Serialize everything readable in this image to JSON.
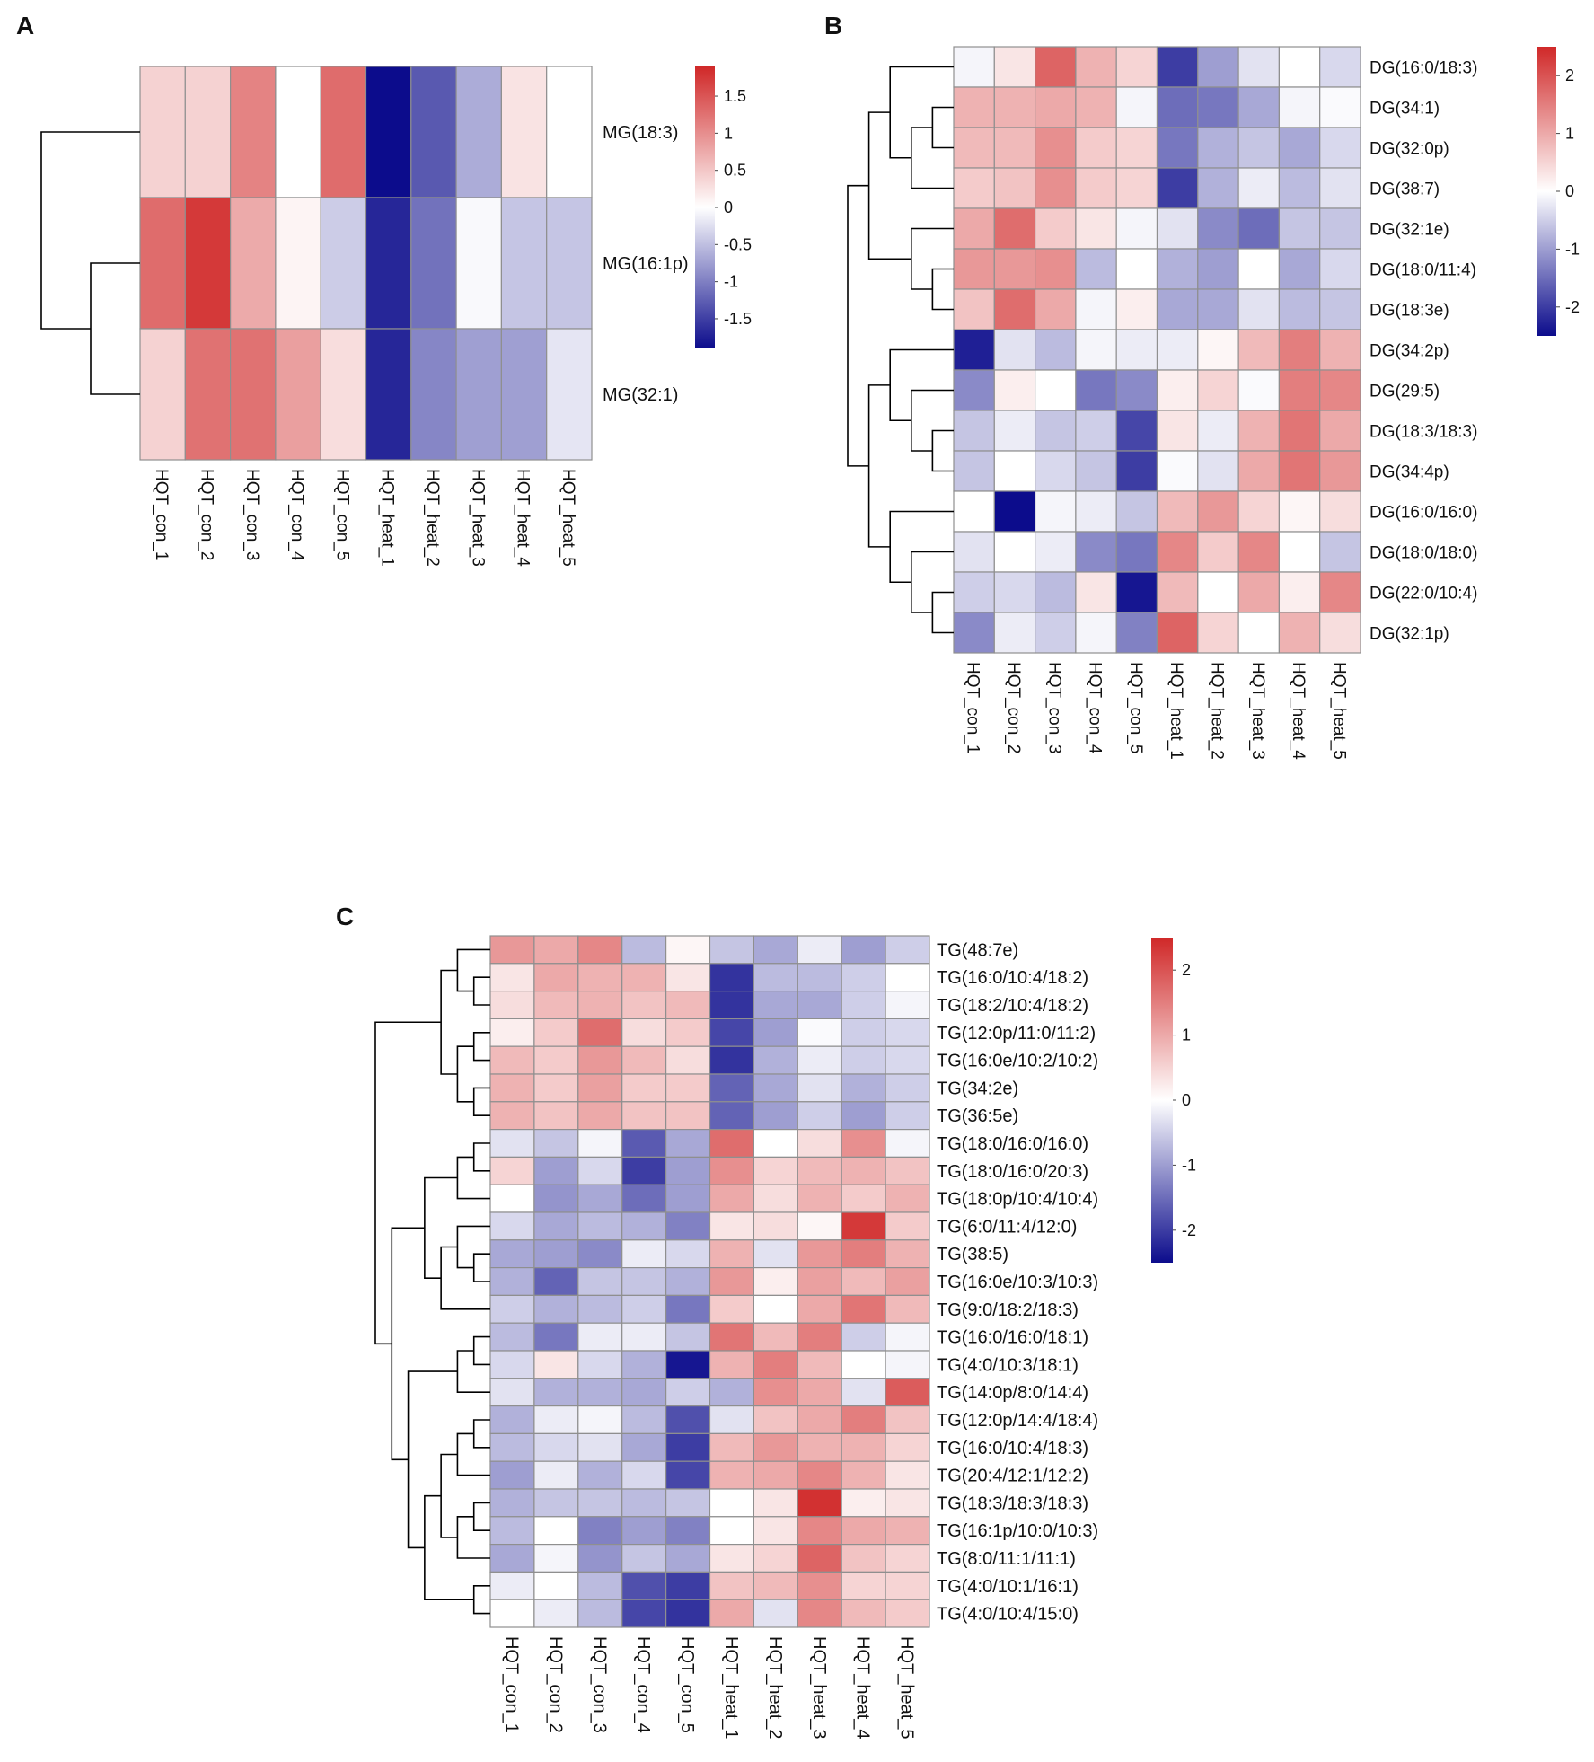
{
  "figure": {
    "panel_letters": [
      "A",
      "B",
      "C"
    ]
  },
  "colors": {
    "low": "#0c0c8c",
    "mid": "#ffffff",
    "high": "#d02828",
    "cell_border": "#8f8f8f",
    "tree": "#000000"
  },
  "chart_data": [
    {
      "type": "heatmap",
      "panel": "A",
      "title": "",
      "columns": [
        "HQT_con_1",
        "HQT_con_2",
        "HQT_con_3",
        "HQT_con_4",
        "HQT_con_5",
        "HQT_heat_1",
        "HQT_heat_2",
        "HQT_heat_3",
        "HQT_heat_4",
        "HQT_heat_5"
      ],
      "rows": [
        "MG(18:3)",
        "MG(16:1p)",
        "MG(32:1)"
      ],
      "values": [
        [
          0.4,
          0.4,
          1.1,
          0.0,
          1.3,
          -1.9,
          -1.3,
          -0.65,
          0.25,
          0.0
        ],
        [
          1.3,
          1.75,
          0.75,
          0.1,
          -0.4,
          -1.7,
          -1.1,
          -0.05,
          -0.45,
          -0.45
        ],
        [
          0.4,
          1.25,
          1.25,
          0.85,
          0.3,
          -1.7,
          -0.95,
          -0.75,
          -0.75,
          -0.2
        ]
      ],
      "legend": {
        "ticks": [
          1.5,
          1,
          0.5,
          0,
          -0.5,
          -1,
          -1.5
        ],
        "range": [
          -1.9,
          1.9
        ]
      },
      "row_dendrogram": {
        "merges": [
          [
            1,
            2
          ],
          [
            0,
            "1+2"
          ]
        ]
      }
    },
    {
      "type": "heatmap",
      "panel": "B",
      "title": "",
      "columns": [
        "HQT_con_1",
        "HQT_con_2",
        "HQT_con_3",
        "HQT_con_4",
        "HQT_con_5",
        "HQT_heat_1",
        "HQT_heat_2",
        "HQT_heat_3",
        "HQT_heat_4",
        "HQT_heat_5"
      ],
      "rows": [
        "DG(16:0/18:3)",
        "DG(34:1)",
        "DG(32:0p)",
        "DG(38:7)",
        "DG(32:1e)",
        "DG(18:0/11:4)",
        "DG(18:3e)",
        "DG(34:2p)",
        "DG(29:5)",
        "DG(18:3/18:3)",
        "DG(34:4p)",
        "DG(16:0/16:0)",
        "DG(18:0/18:0)",
        "DG(22:0/10:4)",
        "DG(32:1p)"
      ],
      "values": [
        [
          -0.1,
          0.3,
          1.8,
          0.9,
          0.5,
          -2.0,
          -1.0,
          -0.3,
          0.0,
          -0.4
        ],
        [
          0.9,
          0.9,
          1.0,
          0.9,
          -0.1,
          -1.5,
          -1.4,
          -0.9,
          -0.1,
          -0.05
        ],
        [
          0.8,
          0.8,
          1.3,
          0.6,
          0.5,
          -1.4,
          -0.8,
          -0.6,
          -0.9,
          -0.4
        ],
        [
          0.6,
          0.7,
          1.3,
          0.6,
          0.5,
          -2.0,
          -0.8,
          -0.2,
          -0.7,
          -0.3
        ],
        [
          1.0,
          1.7,
          0.6,
          0.3,
          -0.1,
          -0.3,
          -1.2,
          -1.5,
          -0.6,
          -0.6
        ],
        [
          1.2,
          1.2,
          1.3,
          -0.7,
          0.0,
          -0.8,
          -1.0,
          0.0,
          -0.9,
          -0.4
        ],
        [
          0.7,
          1.7,
          1.0,
          -0.1,
          0.2,
          -0.9,
          -0.9,
          -0.3,
          -0.7,
          -0.6
        ],
        [
          -2.3,
          -0.3,
          -0.7,
          -0.1,
          -0.2,
          -0.2,
          0.1,
          0.8,
          1.5,
          0.9
        ],
        [
          -1.2,
          0.2,
          0.0,
          -1.4,
          -1.2,
          0.2,
          0.5,
          -0.05,
          1.5,
          1.4
        ],
        [
          -0.6,
          -0.2,
          -0.6,
          -0.5,
          -1.9,
          0.3,
          -0.2,
          0.9,
          1.6,
          1.0
        ],
        [
          -0.6,
          0.0,
          -0.4,
          -0.6,
          -2.0,
          -0.05,
          -0.3,
          1.0,
          1.6,
          1.2
        ],
        [
          0.0,
          -2.5,
          -0.1,
          -0.2,
          -0.6,
          0.8,
          1.2,
          0.5,
          0.1,
          0.4
        ],
        [
          -0.3,
          0.0,
          -0.2,
          -1.2,
          -1.4,
          1.4,
          0.6,
          1.4,
          0.0,
          -0.6
        ],
        [
          -0.5,
          -0.4,
          -0.7,
          0.3,
          -2.4,
          0.8,
          0.0,
          1.0,
          0.2,
          1.4
        ],
        [
          -1.2,
          -0.2,
          -0.5,
          -0.1,
          -1.3,
          1.8,
          0.5,
          0.0,
          0.9,
          0.4
        ]
      ],
      "legend": {
        "ticks": [
          2,
          1,
          0,
          -1,
          -2
        ],
        "range": [
          -2.5,
          2.5
        ]
      },
      "row_dendrogram": {
        "merges": [
          [
            1,
            2
          ],
          [
            3,
            "1+2"
          ],
          [
            0,
            "1+2+3"
          ],
          [
            5,
            6
          ],
          [
            4,
            "5+6"
          ],
          [
            "0-3",
            "4-6"
          ],
          [
            9,
            10
          ],
          [
            8,
            "9+10"
          ],
          [
            7,
            "8-10"
          ],
          [
            13,
            14
          ],
          [
            12,
            "13+14"
          ],
          [
            11,
            "12-14"
          ],
          [
            "7-10",
            "11-14"
          ],
          [
            "0-6",
            "7-14"
          ]
        ]
      }
    },
    {
      "type": "heatmap",
      "panel": "C",
      "title": "",
      "columns": [
        "HQT_con_1",
        "HQT_con_2",
        "HQT_con_3",
        "HQT_con_4",
        "HQT_con_5",
        "HQT_heat_1",
        "HQT_heat_2",
        "HQT_heat_3",
        "HQT_heat_4",
        "HQT_heat_5"
      ],
      "rows": [
        "TG(48:7e)",
        "TG(16:0/10:4/18:2)",
        "TG(18:2/10:4/18:2)",
        "TG(12:0p/11:0/11:2)",
        "TG(16:0e/10:2/10:2)",
        "TG(34:2e)",
        "TG(36:5e)",
        "TG(18:0/16:0/16:0)",
        "TG(18:0/16:0/20:3)",
        "TG(18:0p/10:4/10:4)",
        "TG(6:0/11:4/12:0)",
        "TG(38:5)",
        "TG(16:0e/10:3/10:3)",
        "TG(9:0/18:2/18:3)",
        "TG(16:0/16:0/18:1)",
        "TG(4:0/10:3/18:1)",
        "TG(14:0p/8:0/14:4)",
        "TG(12:0p/14:4/18:4)",
        "TG(16:0/10:4/18:3)",
        "TG(20:4/12:1/12:2)",
        "TG(18:3/18:3/18:3)",
        "TG(16:1p/10:0/10:3)",
        "TG(8:0/11:1/11:1)",
        "TG(4:0/10:1/16:1)",
        "TG(4:0/10:4/15:0)"
      ],
      "values": [
        [
          1.2,
          1.0,
          1.4,
          -0.7,
          0.1,
          -0.6,
          -0.9,
          -0.2,
          -1.0,
          -0.5
        ],
        [
          0.3,
          1.0,
          0.9,
          0.9,
          0.3,
          -2.1,
          -0.7,
          -0.7,
          -0.5,
          0.0
        ],
        [
          0.4,
          0.8,
          0.9,
          0.7,
          0.8,
          -2.1,
          -0.9,
          -0.9,
          -0.5,
          -0.1
        ],
        [
          0.2,
          0.6,
          1.7,
          0.4,
          0.6,
          -1.9,
          -1.0,
          -0.05,
          -0.5,
          -0.4
        ],
        [
          0.8,
          0.6,
          1.2,
          0.8,
          0.4,
          -2.1,
          -0.8,
          -0.2,
          -0.5,
          -0.4
        ],
        [
          0.9,
          0.6,
          1.1,
          0.6,
          0.6,
          -1.6,
          -0.9,
          -0.3,
          -0.8,
          -0.5
        ],
        [
          0.9,
          0.7,
          1.0,
          0.7,
          0.7,
          -1.6,
          -1.0,
          -0.5,
          -1.0,
          -0.5
        ],
        [
          -0.3,
          -0.6,
          -0.1,
          -1.7,
          -0.9,
          1.7,
          0.0,
          0.4,
          1.3,
          -0.1
        ],
        [
          0.5,
          -1.0,
          -0.4,
          -2.0,
          -1.0,
          1.3,
          0.5,
          0.8,
          0.9,
          0.7
        ],
        [
          0.0,
          -1.1,
          -0.9,
          -1.5,
          -1.0,
          1.0,
          0.4,
          0.9,
          0.6,
          0.9
        ],
        [
          -0.4,
          -0.9,
          -0.7,
          -0.8,
          -1.3,
          0.3,
          0.4,
          0.1,
          2.3,
          0.6
        ],
        [
          -0.9,
          -1.0,
          -1.2,
          -0.2,
          -0.4,
          0.9,
          -0.3,
          1.2,
          1.5,
          0.9
        ],
        [
          -0.8,
          -1.6,
          -0.6,
          -0.6,
          -0.8,
          1.2,
          0.2,
          1.1,
          0.8,
          1.1
        ],
        [
          -0.5,
          -0.8,
          -0.7,
          -0.5,
          -1.4,
          0.6,
          0.0,
          1.0,
          1.6,
          0.8
        ],
        [
          -0.7,
          -1.4,
          -0.2,
          -0.2,
          -0.6,
          1.6,
          0.8,
          1.5,
          -0.5,
          -0.1
        ],
        [
          -0.4,
          0.3,
          -0.4,
          -0.8,
          -2.4,
          0.9,
          1.5,
          0.8,
          0.0,
          -0.1
        ],
        [
          -0.3,
          -0.8,
          -0.8,
          -0.9,
          -0.5,
          -0.8,
          1.3,
          1.0,
          -0.3,
          1.9
        ],
        [
          -0.8,
          -0.2,
          -0.1,
          -0.7,
          -1.8,
          -0.3,
          0.7,
          1.0,
          1.5,
          0.7
        ],
        [
          -0.7,
          -0.4,
          -0.3,
          -0.9,
          -2.0,
          0.8,
          1.2,
          0.9,
          0.9,
          0.5
        ],
        [
          -1.0,
          -0.2,
          -0.8,
          -0.4,
          -1.9,
          0.9,
          1.0,
          1.4,
          0.9,
          0.3
        ],
        [
          -0.8,
          -0.6,
          -0.6,
          -0.7,
          -0.6,
          0.0,
          0.3,
          2.4,
          0.2,
          0.3
        ],
        [
          -0.7,
          0.0,
          -1.3,
          -1.0,
          -1.3,
          0.0,
          0.3,
          1.4,
          1.0,
          0.9
        ],
        [
          -0.9,
          -0.1,
          -1.1,
          -0.6,
          -0.9,
          0.3,
          0.5,
          1.8,
          0.7,
          0.5
        ],
        [
          -0.2,
          0.0,
          -0.7,
          -1.8,
          -2.0,
          0.7,
          0.8,
          1.3,
          0.5,
          0.5
        ],
        [
          0.0,
          -0.2,
          -0.7,
          -1.9,
          -2.1,
          1.0,
          -0.3,
          1.4,
          0.8,
          0.6
        ]
      ],
      "legend": {
        "ticks": [
          2,
          1,
          0,
          -1,
          -2
        ],
        "range": [
          -2.5,
          2.5
        ]
      },
      "row_dendrogram": {
        "merges": [
          [
            1,
            2
          ],
          [
            0,
            "1+2"
          ],
          [
            3,
            4
          ],
          [
            5,
            6
          ],
          [
            "3+4",
            "5+6"
          ],
          [
            "0-2",
            "3-6"
          ],
          [
            7,
            8
          ],
          [
            "7+8",
            9
          ],
          [
            11,
            12
          ],
          [
            10,
            "11+12"
          ],
          [
            "10-12",
            13
          ],
          [
            "7-9",
            "10-13"
          ],
          [
            14,
            15
          ],
          [
            "14+15",
            16
          ],
          [
            17,
            18
          ],
          [
            "17+18",
            19
          ],
          [
            20,
            21
          ],
          [
            "20+21",
            22
          ],
          [
            "17-19",
            "20-22"
          ],
          [
            23,
            24
          ],
          [
            "17-22",
            "23+24"
          ],
          [
            "14-16",
            "17-24"
          ],
          [
            "7-13",
            "14-24"
          ],
          [
            "0-6",
            "7-24"
          ]
        ]
      }
    }
  ]
}
